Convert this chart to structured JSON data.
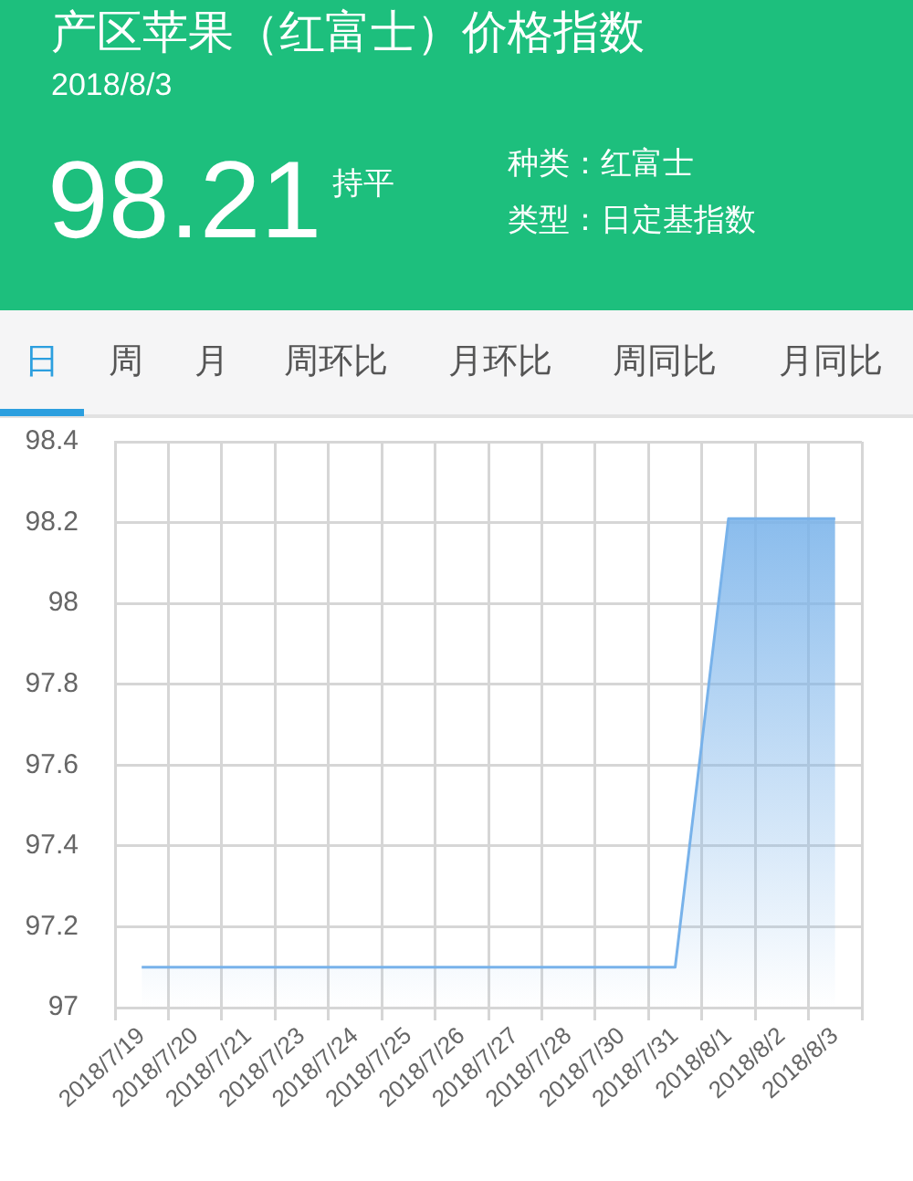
{
  "chart_data": {
    "type": "area",
    "title": "产区苹果（红富士）价格指数",
    "subtitle": "2018/8/3",
    "annotations": [
      "98.21",
      "持平",
      "种类：红富士",
      "类型：日定基指数",
      "日",
      "周",
      "月",
      "周环比",
      "月环比",
      "周同比",
      "月同比"
    ],
    "categories": [
      "2018/7/19",
      "2018/7/20",
      "2018/7/21",
      "2018/7/23",
      "2018/7/24",
      "2018/7/25",
      "2018/7/26",
      "2018/7/27",
      "2018/7/28",
      "2018/7/30",
      "2018/7/31",
      "2018/8/1",
      "2018/8/2",
      "2018/8/3"
    ],
    "series": [
      {
        "color": "#78b2ea",
        "values": [
          97.1,
          97.1,
          97.1,
          97.1,
          97.1,
          97.1,
          97.1,
          97.1,
          97.1,
          97.1,
          97.1,
          98.21,
          98.21,
          98.21
        ]
      }
    ],
    "ylim": [
      97,
      98.4
    ],
    "yticks": [
      97,
      97.2,
      97.4,
      97.6,
      97.8,
      98,
      98.2,
      98.4
    ],
    "grid": true
  }
}
